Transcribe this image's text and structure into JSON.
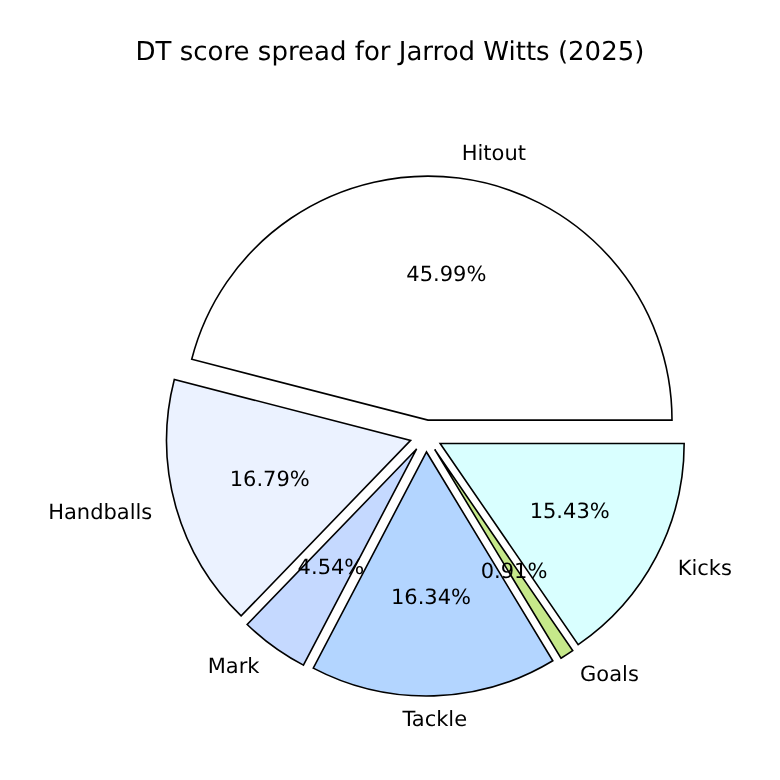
{
  "chart_data": {
    "type": "pie",
    "title": "DT score spread for Jarrod Witts (2025)",
    "categories": [
      "Hitout",
      "Handballs",
      "Mark",
      "Tackle",
      "Goals",
      "Kicks"
    ],
    "values": [
      45.99,
      16.79,
      4.54,
      16.34,
      0.91,
      15.43
    ],
    "value_labels": [
      "45.99%",
      "16.79%",
      "4.54%",
      "16.34%",
      "0.91%",
      "15.43%"
    ],
    "colors": [
      "#ffffff",
      "#ebf2ff",
      "#c5d9ff",
      "#b3d5ff",
      "#c6e88a",
      "#d9ffff"
    ],
    "legend": false
  }
}
